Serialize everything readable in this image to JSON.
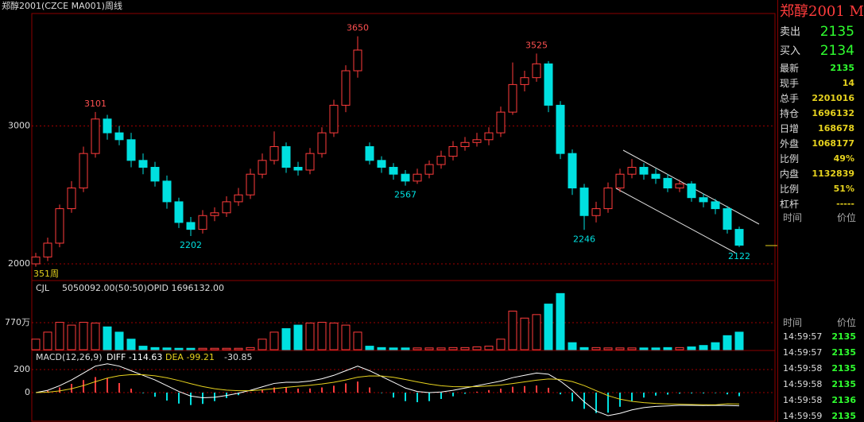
{
  "header": {
    "symbol": "郑醇2001(CZCE MA001)",
    "period": "周线"
  },
  "chart_data": [
    {
      "type": "candlestick",
      "count_label": "351周",
      "up_color": "#ff3c3c",
      "down_color": "#00e0e0",
      "grid": true,
      "open": [
        2000,
        2050,
        2150,
        2400,
        2550,
        2800,
        3050,
        2950,
        2900,
        2750,
        2700,
        2600,
        2450,
        2300,
        2250,
        2350,
        2370,
        2450,
        2500,
        2650,
        2750,
        2850,
        2700,
        2680,
        2800,
        2950,
        3150,
        3400,
        2850,
        2750,
        2700,
        2650,
        2600,
        2650,
        2720,
        2780,
        2850,
        2880,
        2900,
        2950,
        3100,
        3300,
        3350,
        3450,
        3150,
        2800,
        2550,
        2350,
        2400,
        2550,
        2650,
        2700,
        2650,
        2620,
        2550,
        2580,
        2480,
        2450,
        2400,
        2250
      ],
      "high": [
        2080,
        2190,
        2430,
        2600,
        2850,
        3101,
        3080,
        3000,
        2950,
        2800,
        2740,
        2640,
        2480,
        2340,
        2390,
        2410,
        2490,
        2550,
        2690,
        2800,
        2960,
        2880,
        2740,
        2840,
        2990,
        3190,
        3440,
        3650,
        2880,
        2780,
        2730,
        2680,
        2690,
        2750,
        2820,
        2890,
        2920,
        2950,
        2990,
        3140,
        3460,
        3400,
        3525,
        3470,
        3180,
        2830,
        2580,
        2450,
        2590,
        2690,
        2760,
        2730,
        2690,
        2650,
        2610,
        2600,
        2510,
        2470,
        2420,
        2270
      ],
      "low": [
        1980,
        2020,
        2120,
        2370,
        2520,
        2770,
        2900,
        2860,
        2700,
        2650,
        2560,
        2400,
        2260,
        2202,
        2220,
        2310,
        2340,
        2420,
        2470,
        2620,
        2720,
        2660,
        2640,
        2650,
        2770,
        2920,
        3100,
        3350,
        2720,
        2660,
        2610,
        2567,
        2580,
        2620,
        2690,
        2750,
        2820,
        2850,
        2860,
        2920,
        3080,
        3250,
        3320,
        3100,
        2760,
        2500,
        2246,
        2300,
        2370,
        2520,
        2620,
        2610,
        2580,
        2520,
        2520,
        2450,
        2410,
        2360,
        2220,
        2122
      ],
      "close": [
        2050,
        2150,
        2400,
        2550,
        2800,
        3050,
        2950,
        2900,
        2750,
        2700,
        2600,
        2450,
        2300,
        2250,
        2350,
        2370,
        2450,
        2500,
        2650,
        2750,
        2850,
        2700,
        2680,
        2800,
        2950,
        3150,
        3400,
        3550,
        2750,
        2700,
        2650,
        2600,
        2650,
        2720,
        2780,
        2850,
        2880,
        2900,
        2950,
        3100,
        3300,
        3350,
        3450,
        3150,
        2800,
        2550,
        2350,
        2400,
        2550,
        2650,
        2700,
        2650,
        2620,
        2550,
        2580,
        2480,
        2450,
        2400,
        2250,
        2135
      ],
      "peak_labels": [
        3101,
        3650,
        3525
      ],
      "trough_labels": [
        2202,
        2567,
        2246,
        2122
      ],
      "ylim": [
        1879,
        3815
      ],
      "yticks": [
        2000,
        3000
      ]
    },
    {
      "type": "bar",
      "title": "CJL",
      "legend": [
        "5050092.00(50:50)",
        "OPID 1696132.00"
      ],
      "values": [
        300,
        500,
        780,
        700,
        780,
        760,
        650,
        500,
        300,
        100,
        60,
        50,
        40,
        40,
        40,
        40,
        40,
        40,
        60,
        300,
        500,
        600,
        700,
        760,
        780,
        760,
        700,
        500,
        100,
        60,
        50,
        50,
        50,
        50,
        50,
        60,
        60,
        80,
        100,
        300,
        1100,
        900,
        1000,
        1300,
        1600,
        200,
        60,
        60,
        50,
        50,
        50,
        50,
        50,
        60,
        60,
        80,
        120,
        200,
        400,
        500
      ],
      "ylim": [
        0,
        1925
      ],
      "yticks": [
        {
          "value": 770,
          "label": "770万"
        }
      ],
      "grid": true
    },
    {
      "type": "macd",
      "title": "MACD(12,26,9)",
      "legend": [
        "DIFF -114.63",
        "DEA -99.21",
        "-30.85"
      ],
      "series": [
        {
          "name": "DIFF",
          "color": "#ffffff",
          "values": [
            0,
            20,
            60,
            110,
            170,
            230,
            250,
            230,
            190,
            150,
            110,
            60,
            10,
            -30,
            -45,
            -40,
            -25,
            -5,
            20,
            50,
            80,
            90,
            90,
            100,
            120,
            150,
            190,
            230,
            190,
            140,
            90,
            40,
            10,
            0,
            5,
            20,
            40,
            60,
            80,
            100,
            130,
            150,
            170,
            160,
            100,
            20,
            -80,
            -160,
            -200,
            -180,
            -150,
            -130,
            -120,
            -115,
            -110,
            -110,
            -112,
            -110,
            -112,
            -114.63
          ]
        },
        {
          "name": "DEA",
          "color": "#e6d21e",
          "values": [
            0,
            4,
            15,
            34,
            61,
            95,
            126,
            147,
            156,
            155,
            146,
            129,
            105,
            78,
            53,
            34,
            22,
            17,
            17,
            24,
            35,
            46,
            55,
            64,
            75,
            90,
            110,
            134,
            145,
            144,
            133,
            114,
            93,
            74,
            60,
            52,
            50,
            52,
            58,
            66,
            79,
            93,
            108,
            118,
            115,
            96,
            61,
            17,
            -26,
            -57,
            -76,
            -87,
            -94,
            -98,
            -101,
            -103,
            -105,
            -106,
            -97,
            -99.21
          ]
        }
      ],
      "macd": [
        0,
        16,
        45,
        76,
        109,
        135,
        124,
        83,
        34,
        -5,
        -36,
        -69,
        -95,
        -108,
        -98,
        -74,
        -47,
        -22,
        3,
        26,
        45,
        44,
        35,
        36,
        45,
        60,
        80,
        96,
        45,
        -4,
        -43,
        -74,
        -83,
        -74,
        -55,
        -32,
        -10,
        8,
        22,
        34,
        51,
        57,
        62,
        42,
        -15,
        -76,
        -141,
        -177,
        -174,
        -123,
        -74,
        -43,
        -26,
        -17,
        -9,
        -7,
        -7,
        -4,
        -15,
        -30.85
      ],
      "ylim": [
        -255,
        352
      ],
      "yticks": [
        0,
        200
      ],
      "grid": true
    }
  ],
  "quote": {
    "title": "郑醇2001 M",
    "sell_label": "卖出",
    "sell": "2135",
    "buy_label": "买入",
    "buy": "2134",
    "rows": [
      [
        "最新",
        "2135"
      ],
      [
        "现手",
        "14"
      ],
      [
        "总手",
        "2201016"
      ],
      [
        "持仓",
        "1696132"
      ],
      [
        "日增",
        "168678"
      ],
      [
        "外盘",
        "1068177"
      ],
      [
        "比例",
        "49%"
      ],
      [
        "内盘",
        "1132839"
      ],
      [
        "比例",
        "51%"
      ],
      [
        "杠杆",
        "-----"
      ]
    ],
    "tick_header": [
      "时间",
      "价位"
    ],
    "ticks": [
      [
        "14:59:57",
        "2135"
      ],
      [
        "14:59:57",
        "2135"
      ],
      [
        "14:59:58",
        "2135"
      ],
      [
        "14:59:58",
        "2135"
      ],
      [
        "14:59:58",
        "2136"
      ],
      [
        "14:59:59",
        "2135"
      ]
    ]
  }
}
